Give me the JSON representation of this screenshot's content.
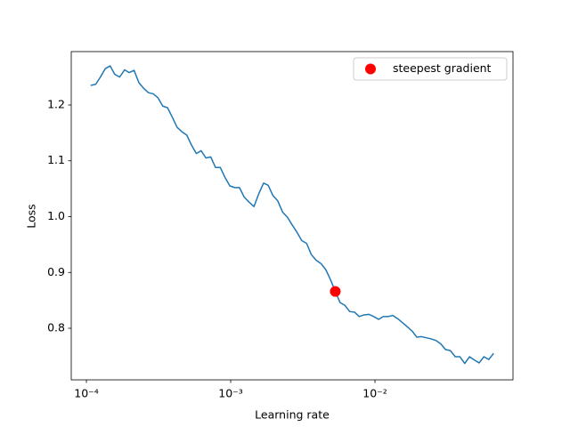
{
  "chart_data": {
    "type": "line",
    "xlabel": "Learning rate",
    "ylabel": "Loss",
    "xscale": "log",
    "xlim": [
      7.85e-05,
      0.0905
    ],
    "ylim": [
      0.7076,
      1.2956
    ],
    "xticks": [
      {
        "value": 0.0001,
        "label": "10⁻⁴"
      },
      {
        "value": 0.001,
        "label": "10⁻³"
      },
      {
        "value": 0.01,
        "label": "10⁻²"
      }
    ],
    "yticks": [
      0.8,
      0.9,
      {
        "value": 1,
        "label": "1.0"
      },
      1.1,
      1.2
    ],
    "grid": false,
    "legend": "upper right",
    "color": "#1f77b4",
    "x": [
      0.000107,
      0.000116,
      0.000125,
      0.000135,
      0.000146,
      0.000157,
      0.00017,
      0.000184,
      0.000198,
      0.000214,
      0.000231,
      0.000249,
      0.000269,
      0.00029,
      0.000313,
      0.000338,
      0.000365,
      0.000394,
      0.000425,
      0.000459,
      0.000496,
      0.000535,
      0.000578,
      0.000624,
      0.000673,
      0.000727,
      0.000785,
      0.000847,
      0.000914,
      0.000987,
      0.00107,
      0.00115,
      0.00124,
      0.00134,
      0.00145,
      0.00156,
      0.00169,
      0.00182,
      0.00196,
      0.00212,
      0.00229,
      0.00247,
      0.00267,
      0.00288,
      0.00311,
      0.00336,
      0.00362,
      0.00391,
      0.00422,
      0.00456,
      0.00492,
      0.00531,
      0.00573,
      0.00619,
      0.00668,
      0.00721,
      0.00778,
      0.0084,
      0.00907,
      0.00979,
      0.0106,
      0.0114,
      0.0123,
      0.0133,
      0.0144,
      0.0155,
      0.0167,
      0.0181,
      0.0195,
      0.021,
      0.0227,
      0.0245,
      0.0265,
      0.0286,
      0.0308,
      0.0333,
      0.036,
      0.0388,
      0.0419,
      0.0452,
      0.0489,
      0.0527,
      0.0569,
      0.0614,
      0.0664
    ],
    "values": [
      1.235,
      1.237,
      1.25,
      1.265,
      1.27,
      1.255,
      1.25,
      1.263,
      1.258,
      1.262,
      1.24,
      1.23,
      1.222,
      1.22,
      1.213,
      1.198,
      1.195,
      1.178,
      1.16,
      1.152,
      1.146,
      1.128,
      1.113,
      1.118,
      1.105,
      1.107,
      1.088,
      1.088,
      1.07,
      1.055,
      1.052,
      1.052,
      1.035,
      1.026,
      1.018,
      1.04,
      1.06,
      1.056,
      1.038,
      1.028,
      1.008,
      0.999,
      0.985,
      0.972,
      0.957,
      0.952,
      0.932,
      0.922,
      0.916,
      0.905,
      0.887,
      0.866,
      0.846,
      0.841,
      0.83,
      0.829,
      0.821,
      0.824,
      0.825,
      0.821,
      0.816,
      0.821,
      0.821,
      0.823,
      0.817,
      0.81,
      0.803,
      0.795,
      0.784,
      0.785,
      0.783,
      0.781,
      0.778,
      0.772,
      0.762,
      0.76,
      0.749,
      0.749,
      0.737,
      0.749,
      0.743,
      0.738,
      0.749,
      0.744,
      0.755
    ],
    "marker": {
      "name": "steepest gradient",
      "color": "#ff0000",
      "x": 0.00531,
      "y": 0.866
    }
  }
}
